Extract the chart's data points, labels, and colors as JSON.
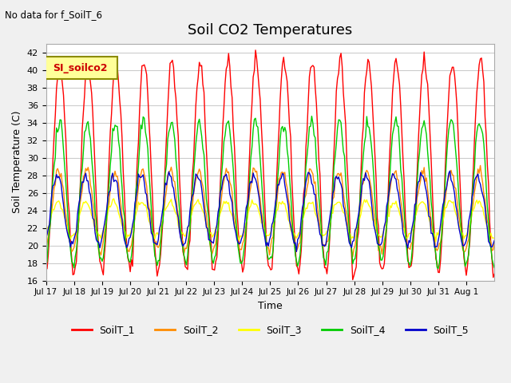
{
  "title": "Soil CO2 Temperatures",
  "ylabel": "Soil Temperature (C)",
  "xlabel": "Time",
  "no_data_text": "No data for f_SoilT_6",
  "legend_box_label": "SI_soilco2",
  "ylim": [
    16,
    43
  ],
  "yticks": [
    16,
    18,
    20,
    22,
    24,
    26,
    28,
    30,
    32,
    34,
    36,
    38,
    40,
    42
  ],
  "xtick_labels": [
    "Jul 17",
    "Jul 18",
    "Jul 19",
    "Jul 20",
    "Jul 21",
    "Jul 22",
    "Jul 23",
    "Jul 24",
    "Jul 25",
    "Jul 26",
    "Jul 27",
    "Jul 28",
    "Jul 29",
    "Jul 30",
    "Jul 31",
    "Aug 1"
  ],
  "series_colors": {
    "SoilT_1": "#ff0000",
    "SoilT_2": "#ff8c00",
    "SoilT_3": "#ffff00",
    "SoilT_4": "#00cc00",
    "SoilT_5": "#0000cc"
  },
  "bg_color": "#f0f0f0",
  "plot_bg": "#ffffff",
  "legend_bg": "#ffff99",
  "legend_border": "#8b8b00"
}
